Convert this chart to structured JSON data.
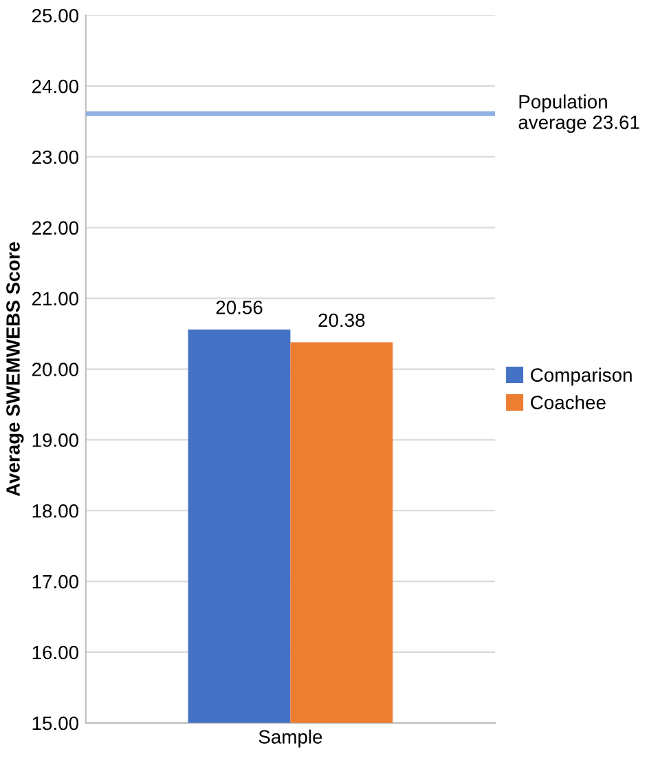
{
  "chart_data": {
    "type": "bar",
    "ylabel": "Average SWEMWEBS Score",
    "categories": [
      "Sample"
    ],
    "series": [
      {
        "name": "Comparison",
        "color": "#4472c4",
        "values": [
          20.56
        ]
      },
      {
        "name": "Coachee",
        "color": "#ed7d31",
        "values": [
          20.38
        ]
      }
    ],
    "ylim": [
      15,
      25
    ],
    "yticks": [
      {
        "value": 15,
        "label": "15.00"
      },
      {
        "value": 16,
        "label": "16.00"
      },
      {
        "value": 17,
        "label": "17.00"
      },
      {
        "value": 18,
        "label": "18.00"
      },
      {
        "value": 19,
        "label": "19.00"
      },
      {
        "value": 20,
        "label": "20.00"
      },
      {
        "value": 21,
        "label": "21.00"
      },
      {
        "value": 22,
        "label": "22.00"
      },
      {
        "value": 23,
        "label": "23.00"
      },
      {
        "value": 24,
        "label": "24.00"
      },
      {
        "value": 25,
        "label": "25.00"
      }
    ],
    "ref_lines": [
      {
        "axis": "y",
        "value": 23.61,
        "label": "Population average 23.61",
        "color": "#8fb0e0"
      }
    ],
    "grid": "y",
    "legend": "right",
    "data_labels": true
  }
}
